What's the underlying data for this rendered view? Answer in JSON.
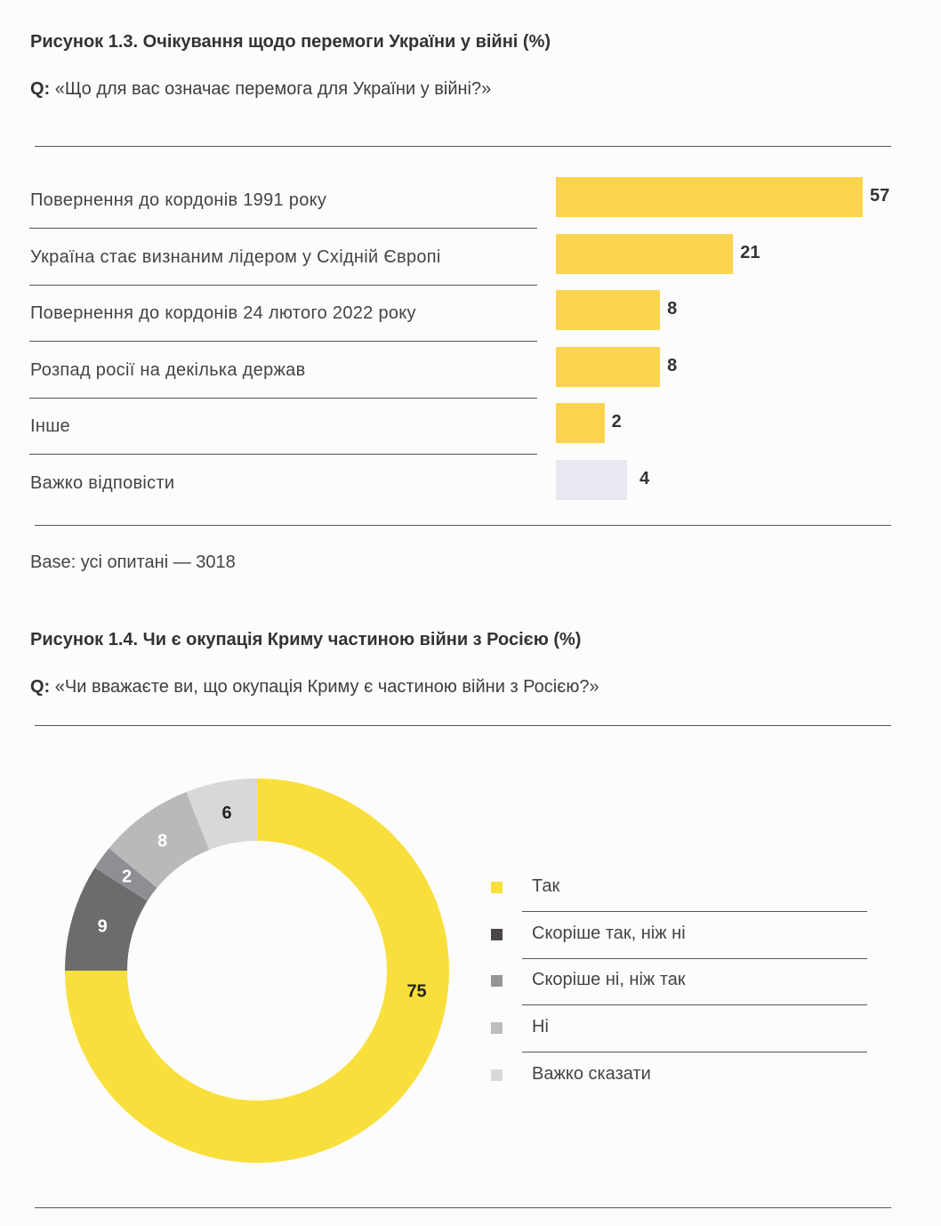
{
  "figure1": {
    "title": "Рисунок 1.3. Очікування щодо перемоги України у війні (%)",
    "q_prefix": "Q:",
    "question": "«Що для вас означає перемога для України у війні?»",
    "base": "Base: усі опитані — 3018"
  },
  "figure2": {
    "title": "Рисунок 1.4. Чи є окупація Криму частиною війни з Росією (%)",
    "q_prefix": "Q:",
    "question": "«Чи вважаєте ви, що окупація Криму є частиною війни з Росією?»"
  },
  "chart_data": [
    {
      "type": "bar",
      "orientation": "horizontal",
      "title": "Рисунок 1.3. Очікування щодо перемоги України у війні (%)",
      "categories": [
        "Повернення до кордонів 1991 року",
        "Україна стає визнаним лідером у Східній Європі",
        "Повернення до кордонів 24 лютого 2022 року",
        "Розпад росії на декілька держав",
        "Інше",
        "Важко відповісти"
      ],
      "values": [
        57,
        21,
        8,
        8,
        2,
        4
      ],
      "labels": [
        "57",
        "21",
        "8",
        "8",
        "2",
        "4"
      ],
      "colors": [
        "#fad44e",
        "#fad44e",
        "#fad44e",
        "#fad44e",
        "#fad44e",
        "#e9e8f0"
      ],
      "xlabel": "",
      "ylabel": ""
    },
    {
      "type": "pie",
      "donut": true,
      "title": "Рисунок 1.4. Чи є окупація Криму частиною війни з Росією (%)",
      "categories": [
        "Так",
        "Скоріше так, ніж ні",
        "Скоріше ні, ніж так",
        "Ні",
        "Важко сказати"
      ],
      "values": [
        75,
        9,
        2,
        8,
        6
      ],
      "labels": [
        "75",
        "9",
        "2",
        "8",
        "6"
      ],
      "colors": [
        "#f9df3c",
        "#6c6b6e",
        "#8f8f93",
        "#b9b9bb",
        "#d9d8d8"
      ],
      "label_colors": [
        "#222222",
        "#ffffff",
        "#ffffff",
        "#ffffff",
        "#222222"
      ],
      "legend_colors": [
        "#f9df3c",
        "#4a4647",
        "#959597",
        "#bdbdbd",
        "#d9d8d8"
      ],
      "legend": "right"
    }
  ]
}
